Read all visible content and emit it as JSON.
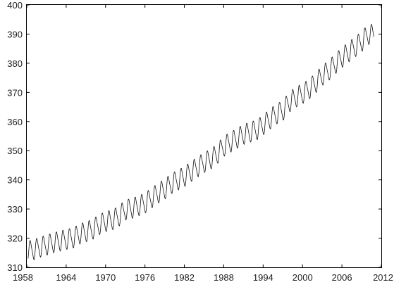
{
  "chart_data": {
    "type": "line",
    "title": "",
    "xlabel": "",
    "ylabel": "",
    "xlim": [
      1958,
      2012
    ],
    "ylim": [
      310,
      400
    ],
    "xticks": [
      1958,
      1964,
      1970,
      1976,
      1982,
      1988,
      1994,
      2000,
      2006,
      2012
    ],
    "yticks": [
      310,
      320,
      330,
      340,
      350,
      360,
      370,
      380,
      390,
      400
    ],
    "grid": false,
    "legend": "none",
    "line_color": "#111111",
    "series": [
      {
        "x": [
          1958,
          1959,
          1960,
          1961,
          1962,
          1963,
          1964,
          1965,
          1966,
          1967,
          1968,
          1969,
          1970,
          1971,
          1972,
          1973,
          1974,
          1975,
          1976,
          1977,
          1978,
          1979,
          1980,
          1981,
          1982,
          1983,
          1984,
          1985,
          1986,
          1987,
          1988,
          1989,
          1990,
          1991,
          1992,
          1993,
          1994,
          1995,
          1996,
          1997,
          1998,
          1999,
          2000,
          2001,
          2002,
          2003,
          2004,
          2005,
          2006,
          2007,
          2008,
          2009,
          2010
        ],
        "y": [
          315.5,
          316.0,
          316.9,
          317.6,
          318.4,
          319.0,
          319.6,
          320.0,
          321.4,
          322.2,
          323.0,
          324.6,
          325.7,
          326.3,
          327.5,
          329.7,
          330.2,
          331.1,
          332.0,
          333.8,
          335.4,
          336.8,
          338.7,
          339.9,
          341.1,
          342.8,
          344.4,
          345.9,
          347.1,
          348.9,
          351.5,
          352.9,
          354.2,
          355.6,
          356.4,
          357.1,
          358.8,
          360.8,
          362.6,
          363.7,
          366.7,
          368.4,
          369.6,
          371.1,
          373.2,
          375.8,
          377.5,
          379.8,
          381.9,
          383.8,
          385.6,
          387.4,
          389.9
        ],
        "seasonal_amplitude": 3.3
      }
    ]
  }
}
